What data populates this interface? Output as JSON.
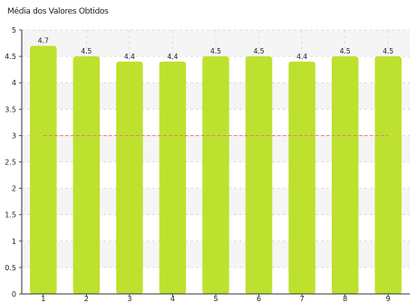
{
  "chart_data": {
    "type": "bar",
    "title": "Média dos Valores Obtidos",
    "categories": [
      "1",
      "2",
      "3",
      "4",
      "5",
      "6",
      "7",
      "8",
      "9"
    ],
    "values": [
      4.7,
      4.5,
      4.4,
      4.4,
      4.5,
      4.5,
      4.4,
      4.5,
      4.5
    ],
    "data_labels": [
      "4.7",
      "4.5",
      "4.4",
      "4.4",
      "4.5",
      "4.5",
      "4.4",
      "4.5",
      "4.5"
    ],
    "y_ticks": [
      "0",
      "0.5",
      "1",
      "1.5",
      "2",
      "2.5",
      "3",
      "3.5",
      "4",
      "4.5",
      "5"
    ],
    "ylim": [
      0,
      5
    ],
    "reference_line": 3,
    "grid": true,
    "xlabel": "",
    "ylabel": "",
    "colors": {
      "bar": "#bde12e",
      "reference_line": "#e07a7a",
      "grid": "#d6d6d6",
      "band": "#f5f5f5",
      "axis": "#333333"
    }
  }
}
